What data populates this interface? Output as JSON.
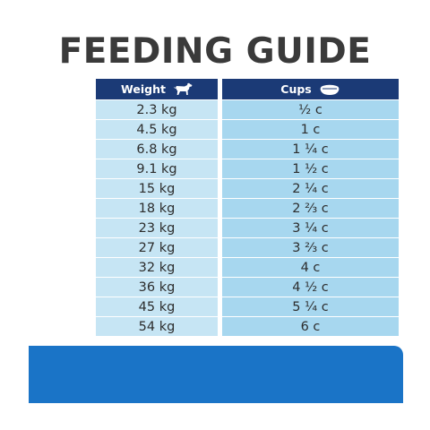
{
  "title": "FEEDING GUIDE",
  "table": {
    "weight_header": "Weight",
    "cups_header": "Cups",
    "rows": [
      {
        "weight": "2.3 kg",
        "cups": "½ c"
      },
      {
        "weight": "4.5 kg",
        "cups": "1 c"
      },
      {
        "weight": "6.8 kg",
        "cups": "1 ¼ c"
      },
      {
        "weight": "9.1 kg",
        "cups": "1 ½ c"
      },
      {
        "weight": "15 kg",
        "cups": "2 ¼ c"
      },
      {
        "weight": "18 kg",
        "cups": "2 ⅔ c"
      },
      {
        "weight": "23 kg",
        "cups": "3 ¼ c"
      },
      {
        "weight": "27 kg",
        "cups": "3 ⅔ c"
      },
      {
        "weight": "32 kg",
        "cups": "4 c"
      },
      {
        "weight": "36 kg",
        "cups": "4 ½ c"
      },
      {
        "weight": "45 kg",
        "cups": "5 ¼ c"
      },
      {
        "weight": "54 kg",
        "cups": "6 c"
      }
    ]
  },
  "icons": {
    "weight": "dog-icon",
    "cups": "food-bowl-icon"
  },
  "colors": {
    "header_bg": "#1b3a76",
    "weight_cell_bg": "#c6e5f4",
    "cups_cell_bg": "#a7d7ef",
    "bottom_bar": "#1a74c7",
    "title_text": "#3a3a3a"
  }
}
